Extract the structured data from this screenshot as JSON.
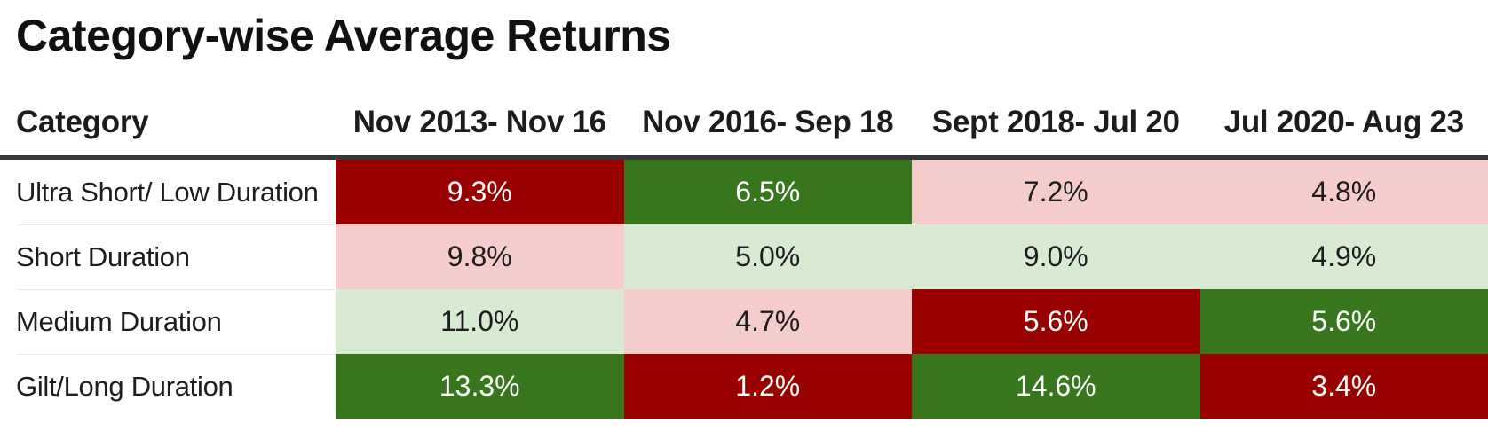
{
  "colors": {
    "dark_red": "#990000",
    "dark_green": "#38761d",
    "light_red": "#f4cccc",
    "light_green": "#d9ead3",
    "header_rule": "#383838",
    "row_separator": "#ebebeb",
    "text_dark": "#1d1d1d",
    "text_on_dark": "#ffffff",
    "background": "#ffffff"
  },
  "chart_data": {
    "type": "heatmap",
    "title": "Category-wise Average Returns",
    "unit": "%",
    "legend_position": "none",
    "columns": [
      "Category",
      "Nov 2013- Nov 16",
      "Nov 2016- Sep 18",
      "Sept 2018- Jul 20",
      "Jul 2020- Aug 23"
    ],
    "rows": [
      {
        "category": "Ultra Short/ Low Duration",
        "values": [
          {
            "label": "9.3%",
            "value": 9.3,
            "tone": "dark_red"
          },
          {
            "label": "6.5%",
            "value": 6.5,
            "tone": "dark_green"
          },
          {
            "label": "7.2%",
            "value": 7.2,
            "tone": "light_red"
          },
          {
            "label": "4.8%",
            "value": 4.8,
            "tone": "light_red"
          }
        ]
      },
      {
        "category": "Short Duration",
        "values": [
          {
            "label": "9.8%",
            "value": 9.8,
            "tone": "light_red"
          },
          {
            "label": "5.0%",
            "value": 5.0,
            "tone": "light_green"
          },
          {
            "label": "9.0%",
            "value": 9.0,
            "tone": "light_green"
          },
          {
            "label": "4.9%",
            "value": 4.9,
            "tone": "light_green"
          }
        ]
      },
      {
        "category": "Medium Duration",
        "values": [
          {
            "label": "11.0%",
            "value": 11.0,
            "tone": "light_green"
          },
          {
            "label": "4.7%",
            "value": 4.7,
            "tone": "light_red"
          },
          {
            "label": "5.6%",
            "value": 5.6,
            "tone": "dark_red"
          },
          {
            "label": "5.6%",
            "value": 5.6,
            "tone": "dark_green"
          }
        ]
      },
      {
        "category": "Gilt/Long Duration",
        "values": [
          {
            "label": "13.3%",
            "value": 13.3,
            "tone": "dark_green"
          },
          {
            "label": "1.2%",
            "value": 1.2,
            "tone": "dark_red"
          },
          {
            "label": "14.6%",
            "value": 14.6,
            "tone": "dark_green"
          },
          {
            "label": "3.4%",
            "value": 3.4,
            "tone": "dark_red"
          }
        ]
      }
    ]
  }
}
